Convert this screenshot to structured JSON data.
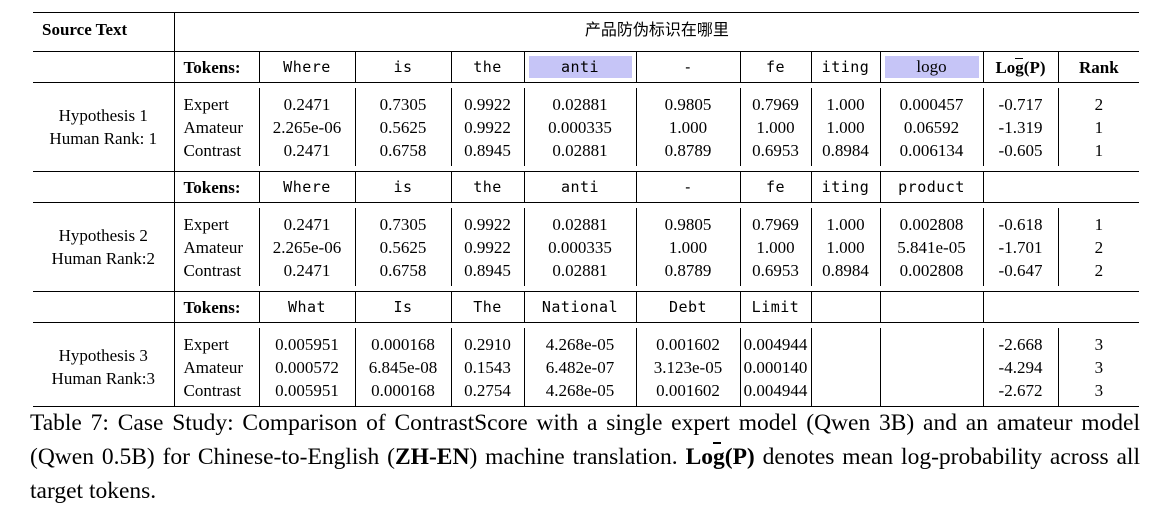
{
  "source_label": "Source Text",
  "source_text": "产品防伪标识在哪里",
  "tokens_label": "Tokens:",
  "logp_label": "Log(P)",
  "rank_label": "Rank",
  "highlight_color": "#c6c5f7",
  "hypotheses": [
    {
      "name": "Hypothesis 1",
      "human_rank": "Human Rank: 1",
      "tokens": [
        "Where",
        "is",
        "the",
        "anti",
        "-",
        "fe",
        "iting",
        "logo"
      ],
      "highlight": [
        3,
        7
      ],
      "rows": [
        {
          "model": "Expert",
          "values": [
            "0.2471",
            "0.7305",
            "0.9922",
            "0.02881",
            "0.9805",
            "0.7969",
            "1.000",
            "0.000457"
          ],
          "logp": "-0.717",
          "rank": "2"
        },
        {
          "model": "Amateur",
          "values": [
            "2.265e-06",
            "0.5625",
            "0.9922",
            "0.000335",
            "1.000",
            "1.000",
            "1.000",
            "0.06592"
          ],
          "logp": "-1.319",
          "rank": "1"
        },
        {
          "model": "Contrast",
          "values": [
            "0.2471",
            "0.6758",
            "0.8945",
            "0.02881",
            "0.8789",
            "0.6953",
            "0.8984",
            "0.006134"
          ],
          "logp": "-0.605",
          "rank": "1"
        }
      ]
    },
    {
      "name": "Hypothesis 2",
      "human_rank": "Human Rank:2",
      "tokens": [
        "Where",
        "is",
        "the",
        "anti",
        "-",
        "fe",
        "iting",
        "product"
      ],
      "highlight": [],
      "rows": [
        {
          "model": "Expert",
          "values": [
            "0.2471",
            "0.7305",
            "0.9922",
            "0.02881",
            "0.9805",
            "0.7969",
            "1.000",
            "0.002808"
          ],
          "logp": "-0.618",
          "rank": "1"
        },
        {
          "model": "Amateur",
          "values": [
            "2.265e-06",
            "0.5625",
            "0.9922",
            "0.000335",
            "1.000",
            "1.000",
            "1.000",
            "5.841e-05"
          ],
          "logp": "-1.701",
          "rank": "2"
        },
        {
          "model": "Contrast",
          "values": [
            "0.2471",
            "0.6758",
            "0.8945",
            "0.02881",
            "0.8789",
            "0.6953",
            "0.8984",
            "0.002808"
          ],
          "logp": "-0.647",
          "rank": "2"
        }
      ]
    },
    {
      "name": "Hypothesis 3",
      "human_rank": "Human Rank:3",
      "tokens": [
        "What",
        "Is",
        "The",
        "National",
        "Debt",
        "Limit",
        "",
        ""
      ],
      "highlight": [],
      "rows": [
        {
          "model": "Expert",
          "values": [
            "0.005951",
            "0.000168",
            "0.2910",
            "4.268e-05",
            "0.001602",
            "0.004944",
            "",
            ""
          ],
          "logp": "-2.668",
          "rank": "3"
        },
        {
          "model": "Amateur",
          "values": [
            "0.000572",
            "6.845e-08",
            "0.1543",
            "6.482e-07",
            "3.123e-05",
            "0.000140",
            "",
            ""
          ],
          "logp": "-4.294",
          "rank": "3"
        },
        {
          "model": "Contrast",
          "values": [
            "0.005951",
            "0.000168",
            "0.2754",
            "4.268e-05",
            "0.001602",
            "0.004944",
            "",
            ""
          ],
          "logp": "-2.672",
          "rank": "3"
        }
      ]
    }
  ],
  "caption": {
    "prefix": "Table 7: Case Study: Comparison of ContrastScore with a single expert model (Qwen 3B) and an amateur model (Qwen 0.5B) for Chinese-to-English (",
    "zh_en": "ZH-EN",
    "middle": ") machine translation. ",
    "logp": "Log(P)",
    "suffix": " denotes mean log-probability across all target tokens."
  }
}
